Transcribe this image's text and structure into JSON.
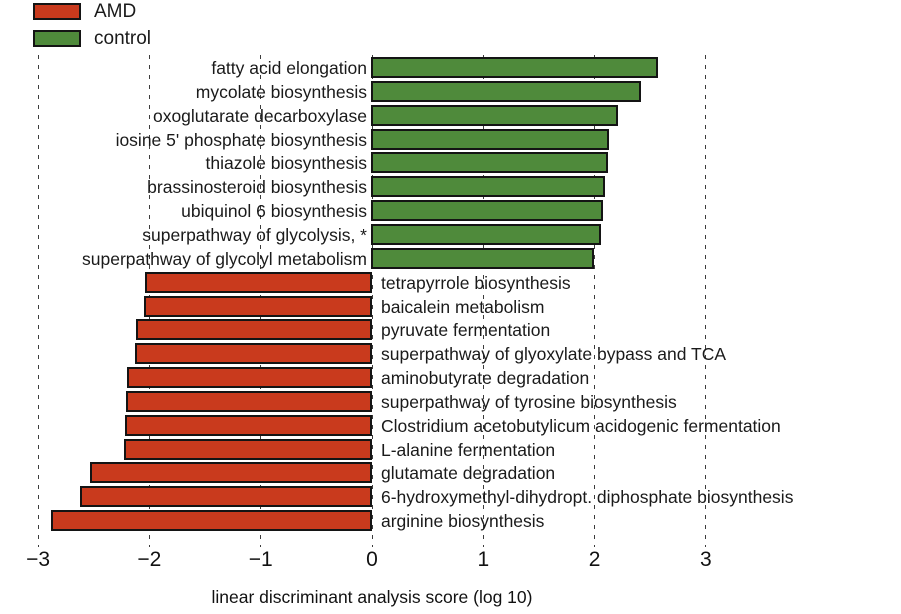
{
  "legend": {
    "items": [
      {
        "label": "AMD",
        "color": "#c93a1d"
      },
      {
        "label": "control",
        "color": "#4f8a3b"
      }
    ]
  },
  "axis": {
    "label": "linear discriminant analysis score (log 10)"
  },
  "chart_data": {
    "type": "bar",
    "orientation": "horizontal",
    "title": "",
    "xlabel": "linear discriminant analysis score (log 10)",
    "ylabel": "",
    "xlim": [
      -3.35,
      4.75
    ],
    "xticks": [
      -3,
      -2,
      -1,
      0,
      1,
      2,
      3
    ],
    "xtick_labels": [
      "−3",
      "−2",
      "−1",
      "0",
      "1",
      "2",
      "3"
    ],
    "grid": "dashed-vertical",
    "legend_position": "upper-left",
    "groups": [
      {
        "name": "AMD",
        "color": "#c93a1d"
      },
      {
        "name": "control",
        "color": "#4f8a3b"
      }
    ],
    "bars": [
      {
        "label": "fatty acid elongation",
        "value": 2.58,
        "group": "control"
      },
      {
        "label": "mycolate biosynthesis",
        "value": 2.43,
        "group": "control"
      },
      {
        "label": "oxoglutarate decarboxylase",
        "value": 2.22,
        "group": "control"
      },
      {
        "label": "iosine 5' phosphate biosynthesis",
        "value": 2.14,
        "group": "control"
      },
      {
        "label": "thiazole biosynthesis",
        "value": 2.13,
        "group": "control"
      },
      {
        "label": "brassinosteroid biosynthesis",
        "value": 2.1,
        "group": "control"
      },
      {
        "label": "ubiquinol 6 biosynthesis",
        "value": 2.08,
        "group": "control"
      },
      {
        "label": "superpathway of glycolysis, *",
        "value": 2.07,
        "group": "control"
      },
      {
        "label": "superpathway of glycolyl metabolism",
        "value": 2.0,
        "group": "control"
      },
      {
        "label": "tetrapyrrole biosynthesis",
        "value": -2.04,
        "group": "AMD"
      },
      {
        "label": "baicalein metabolism",
        "value": -2.05,
        "group": "AMD"
      },
      {
        "label": "pyruvate fermentation",
        "value": -2.12,
        "group": "AMD"
      },
      {
        "label": "superpathway of glyoxylate bypass and TCA",
        "value": -2.13,
        "group": "AMD"
      },
      {
        "label": "aminobutyrate degradation",
        "value": -2.2,
        "group": "AMD"
      },
      {
        "label": "superpathway of tyrosine biosynthesis",
        "value": -2.21,
        "group": "AMD"
      },
      {
        "label": "Clostridium acetobutylicum acidogenic fermentation",
        "value": -2.22,
        "group": "AMD"
      },
      {
        "label": "L-alanine fermentation",
        "value": -2.23,
        "group": "AMD"
      },
      {
        "label": "glutamate degradation",
        "value": -2.53,
        "group": "AMD"
      },
      {
        "label": "6-hydroxymethyl-dihydropt. diphosphate biosynthesis",
        "value": -2.62,
        "group": "AMD"
      },
      {
        "label": "arginine biosynthesis",
        "value": -2.88,
        "group": "AMD"
      }
    ]
  }
}
